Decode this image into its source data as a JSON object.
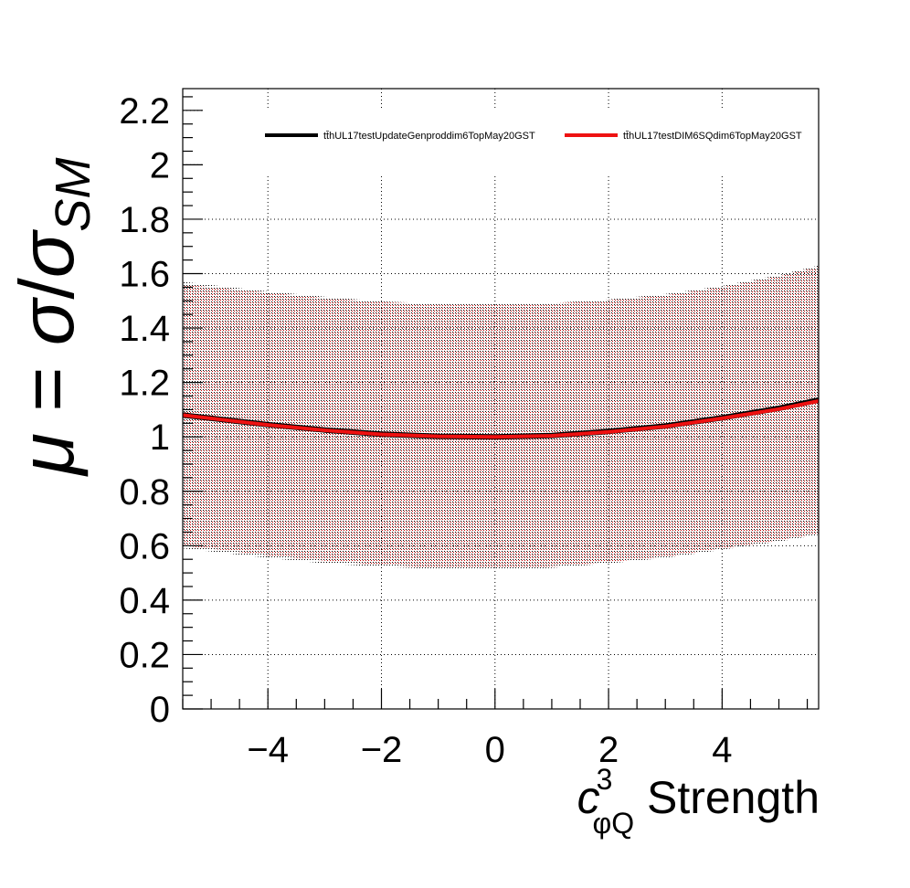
{
  "chart_data": {
    "type": "line",
    "title": "",
    "xlabel": {
      "symbol": "c",
      "superscript": "3",
      "subscript": "φQ",
      "suffix": " Strength"
    },
    "ylabel": {
      "lhs": "μ",
      "eq": " = ",
      "num": "σ",
      "slash": "/",
      "den": "σ",
      "den_sub": "SM"
    },
    "xlim": [
      -5.5,
      5.7
    ],
    "ylim": [
      0,
      2.28
    ],
    "x_major_ticks": [
      -4,
      -2,
      0,
      2,
      4
    ],
    "x_tick_labels": [
      "−4",
      "−2",
      "0",
      "2",
      "4"
    ],
    "y_major_ticks": [
      0,
      0.2,
      0.4,
      0.6,
      0.8,
      1,
      1.2,
      1.4,
      1.6,
      1.8,
      2,
      2.2
    ],
    "y_tick_labels": [
      "0",
      "0.2",
      "0.4",
      "0.6",
      "0.8",
      "1",
      "1.2",
      "1.4",
      "1.6",
      "1.8",
      "2",
      "2.2"
    ],
    "grid": true,
    "legend_position": "top",
    "x": [
      -5.5,
      -4,
      -3,
      -2,
      -1,
      0,
      1,
      2,
      3,
      4,
      5,
      5.7
    ],
    "series": [
      {
        "name": "tt̄hUL17testUpdateGenproddim6TopMay20GST",
        "color": "#000000",
        "values": [
          1.08,
          1.045,
          1.025,
          1.01,
          1.002,
          1.0,
          1.005,
          1.02,
          1.04,
          1.07,
          1.105,
          1.135
        ],
        "band_upper": [
          1.57,
          1.535,
          1.515,
          1.498,
          1.49,
          1.488,
          1.492,
          1.505,
          1.525,
          1.555,
          1.595,
          1.63
        ],
        "band_lower": [
          0.59,
          0.555,
          0.535,
          0.522,
          0.514,
          0.512,
          0.518,
          0.535,
          0.555,
          0.585,
          0.615,
          0.64
        ]
      },
      {
        "name": "tt̄hUL17testDIM6SQdim6TopMay20GST",
        "color": "#ee1111",
        "values": [
          1.08,
          1.044,
          1.024,
          1.009,
          1.002,
          1.0,
          1.004,
          1.018,
          1.038,
          1.068,
          1.102,
          1.132
        ],
        "band_upper": [
          1.56,
          1.53,
          1.51,
          1.495,
          1.487,
          1.485,
          1.49,
          1.502,
          1.52,
          1.55,
          1.59,
          1.625
        ],
        "band_lower": [
          0.6,
          0.565,
          0.545,
          0.53,
          0.52,
          0.518,
          0.525,
          0.54,
          0.56,
          0.59,
          0.62,
          0.645
        ]
      }
    ]
  }
}
